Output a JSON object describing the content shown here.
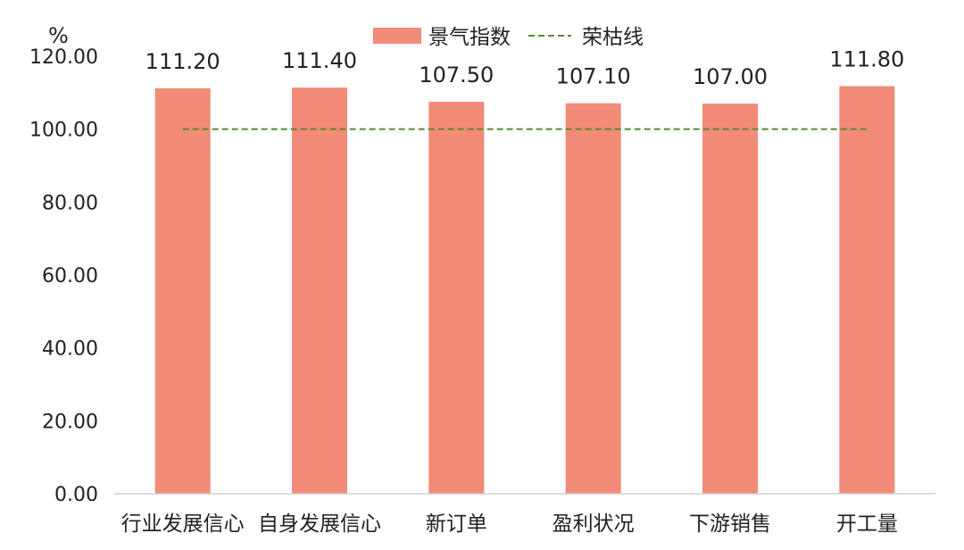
{
  "chart_data": {
    "type": "bar",
    "title": "",
    "ylabel": "%",
    "xlabel": "",
    "categories": [
      "行业发展信心",
      "自身发展信心",
      "新订单",
      "盈利状况",
      "下游销售",
      "开工量"
    ],
    "series": [
      {
        "name": "景气指数",
        "type": "bar",
        "values": [
          111.2,
          111.4,
          107.5,
          107.1,
          107.0,
          111.8
        ],
        "data_labels": [
          "111.20",
          "111.40",
          "107.50",
          "107.10",
          "107.00",
          "111.80"
        ],
        "color": "#F28B77"
      },
      {
        "name": "荣枯线",
        "type": "line",
        "style": "dashed",
        "values": [
          100,
          100,
          100,
          100,
          100,
          100
        ],
        "color": "#5A8A2E"
      }
    ],
    "ylim": [
      0,
      120
    ],
    "yticks": [
      "0.00",
      "20.00",
      "40.00",
      "60.00",
      "80.00",
      "100.00",
      "120.00"
    ],
    "grid": false,
    "legend_position": "top-center"
  }
}
